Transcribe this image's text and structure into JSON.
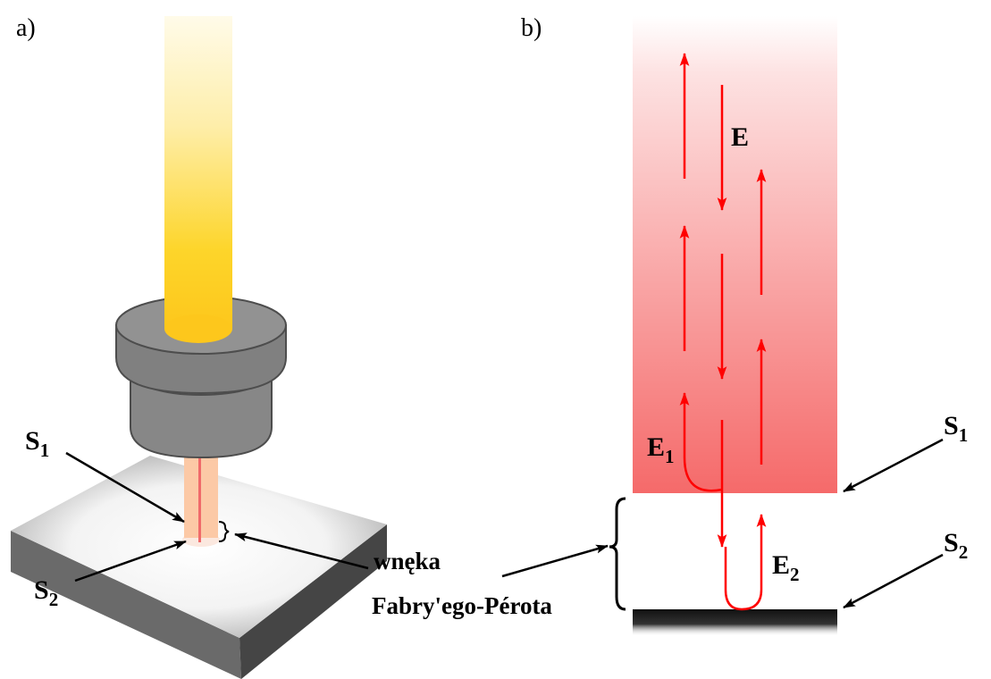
{
  "colors": {
    "fiber_yellow": "#fdd52a",
    "ferrule_gray": "#878787",
    "red_arrow": "#ff0000",
    "beam_red": "#f56a6a",
    "mirror_black": "#141414"
  },
  "panel_a": {
    "label": "a)",
    "s1": {
      "letter": "S",
      "index": "1"
    },
    "s2": {
      "letter": "S",
      "index": "2"
    }
  },
  "panel_b": {
    "label": "b)",
    "e": "E",
    "e1": {
      "letter": "E",
      "index": "1"
    },
    "e2": {
      "letter": "E",
      "index": "2"
    },
    "s1": {
      "letter": "S",
      "index": "1"
    },
    "s2": {
      "letter": "S",
      "index": "2"
    }
  },
  "cavity_label": {
    "line1": "wnęka",
    "line2": "Fabry'ego-Pérota"
  }
}
